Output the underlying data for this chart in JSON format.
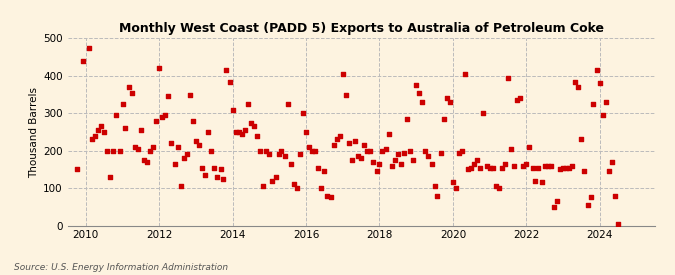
{
  "title": "Monthly West Coast (PADD 5) Exports to Australia of Petroleum Coke",
  "ylabel": "Thousand Barrels",
  "source": "Source: U.S. Energy Information Administration",
  "background_color": "#fdf3e0",
  "marker_color": "#cc0000",
  "xlim": [
    2009.5,
    2025.5
  ],
  "ylim": [
    0,
    500
  ],
  "yticks": [
    0,
    100,
    200,
    300,
    400,
    500
  ],
  "xticks": [
    2010,
    2012,
    2014,
    2016,
    2018,
    2020,
    2022,
    2024
  ],
  "data": [
    [
      2009.75,
      150
    ],
    [
      2009.92,
      440
    ],
    [
      2010.08,
      475
    ],
    [
      2010.17,
      230
    ],
    [
      2010.25,
      240
    ],
    [
      2010.33,
      255
    ],
    [
      2010.42,
      265
    ],
    [
      2010.5,
      250
    ],
    [
      2010.58,
      200
    ],
    [
      2010.67,
      130
    ],
    [
      2010.75,
      200
    ],
    [
      2010.83,
      295
    ],
    [
      2010.92,
      200
    ],
    [
      2011.0,
      325
    ],
    [
      2011.08,
      260
    ],
    [
      2011.17,
      370
    ],
    [
      2011.25,
      355
    ],
    [
      2011.33,
      210
    ],
    [
      2011.42,
      205
    ],
    [
      2011.5,
      255
    ],
    [
      2011.58,
      175
    ],
    [
      2011.67,
      170
    ],
    [
      2011.75,
      200
    ],
    [
      2011.83,
      210
    ],
    [
      2011.92,
      280
    ],
    [
      2012.0,
      420
    ],
    [
      2012.08,
      290
    ],
    [
      2012.17,
      295
    ],
    [
      2012.25,
      345
    ],
    [
      2012.33,
      220
    ],
    [
      2012.42,
      165
    ],
    [
      2012.5,
      210
    ],
    [
      2012.58,
      105
    ],
    [
      2012.67,
      180
    ],
    [
      2012.75,
      190
    ],
    [
      2012.83,
      350
    ],
    [
      2012.92,
      280
    ],
    [
      2013.0,
      225
    ],
    [
      2013.08,
      215
    ],
    [
      2013.17,
      155
    ],
    [
      2013.25,
      135
    ],
    [
      2013.33,
      250
    ],
    [
      2013.42,
      200
    ],
    [
      2013.5,
      155
    ],
    [
      2013.58,
      130
    ],
    [
      2013.67,
      150
    ],
    [
      2013.75,
      125
    ],
    [
      2013.83,
      415
    ],
    [
      2013.92,
      385
    ],
    [
      2014.0,
      310
    ],
    [
      2014.08,
      250
    ],
    [
      2014.17,
      250
    ],
    [
      2014.25,
      245
    ],
    [
      2014.33,
      255
    ],
    [
      2014.42,
      325
    ],
    [
      2014.5,
      275
    ],
    [
      2014.58,
      265
    ],
    [
      2014.67,
      240
    ],
    [
      2014.75,
      200
    ],
    [
      2014.83,
      105
    ],
    [
      2014.92,
      200
    ],
    [
      2015.0,
      190
    ],
    [
      2015.08,
      120
    ],
    [
      2015.17,
      130
    ],
    [
      2015.25,
      190
    ],
    [
      2015.33,
      200
    ],
    [
      2015.42,
      185
    ],
    [
      2015.5,
      325
    ],
    [
      2015.58,
      165
    ],
    [
      2015.67,
      110
    ],
    [
      2015.75,
      100
    ],
    [
      2015.83,
      190
    ],
    [
      2015.92,
      300
    ],
    [
      2016.0,
      250
    ],
    [
      2016.08,
      210
    ],
    [
      2016.17,
      200
    ],
    [
      2016.25,
      200
    ],
    [
      2016.33,
      155
    ],
    [
      2016.42,
      100
    ],
    [
      2016.5,
      145
    ],
    [
      2016.58,
      80
    ],
    [
      2016.67,
      75
    ],
    [
      2016.75,
      215
    ],
    [
      2016.83,
      230
    ],
    [
      2016.92,
      240
    ],
    [
      2017.0,
      405
    ],
    [
      2017.08,
      350
    ],
    [
      2017.17,
      220
    ],
    [
      2017.25,
      175
    ],
    [
      2017.33,
      225
    ],
    [
      2017.42,
      185
    ],
    [
      2017.5,
      180
    ],
    [
      2017.58,
      215
    ],
    [
      2017.67,
      200
    ],
    [
      2017.75,
      200
    ],
    [
      2017.83,
      170
    ],
    [
      2017.92,
      145
    ],
    [
      2018.0,
      165
    ],
    [
      2018.08,
      200
    ],
    [
      2018.17,
      205
    ],
    [
      2018.25,
      245
    ],
    [
      2018.33,
      160
    ],
    [
      2018.42,
      175
    ],
    [
      2018.5,
      190
    ],
    [
      2018.58,
      165
    ],
    [
      2018.67,
      195
    ],
    [
      2018.75,
      285
    ],
    [
      2018.83,
      200
    ],
    [
      2018.92,
      175
    ],
    [
      2019.0,
      375
    ],
    [
      2019.08,
      355
    ],
    [
      2019.17,
      330
    ],
    [
      2019.25,
      200
    ],
    [
      2019.33,
      185
    ],
    [
      2019.42,
      165
    ],
    [
      2019.5,
      105
    ],
    [
      2019.58,
      80
    ],
    [
      2019.67,
      195
    ],
    [
      2019.75,
      285
    ],
    [
      2019.83,
      340
    ],
    [
      2019.92,
      330
    ],
    [
      2020.0,
      115
    ],
    [
      2020.08,
      100
    ],
    [
      2020.17,
      195
    ],
    [
      2020.25,
      200
    ],
    [
      2020.33,
      405
    ],
    [
      2020.42,
      150
    ],
    [
      2020.5,
      155
    ],
    [
      2020.58,
      165
    ],
    [
      2020.67,
      175
    ],
    [
      2020.75,
      155
    ],
    [
      2020.83,
      300
    ],
    [
      2020.92,
      160
    ],
    [
      2021.0,
      155
    ],
    [
      2021.08,
      155
    ],
    [
      2021.17,
      105
    ],
    [
      2021.25,
      100
    ],
    [
      2021.33,
      155
    ],
    [
      2021.42,
      165
    ],
    [
      2021.5,
      395
    ],
    [
      2021.58,
      205
    ],
    [
      2021.67,
      160
    ],
    [
      2021.75,
      335
    ],
    [
      2021.83,
      340
    ],
    [
      2021.92,
      160
    ],
    [
      2022.0,
      165
    ],
    [
      2022.08,
      210
    ],
    [
      2022.17,
      155
    ],
    [
      2022.25,
      120
    ],
    [
      2022.33,
      155
    ],
    [
      2022.42,
      115
    ],
    [
      2022.5,
      160
    ],
    [
      2022.58,
      160
    ],
    [
      2022.67,
      160
    ],
    [
      2022.75,
      50
    ],
    [
      2022.83,
      65
    ],
    [
      2022.92,
      150
    ],
    [
      2023.0,
      155
    ],
    [
      2023.08,
      155
    ],
    [
      2023.17,
      155
    ],
    [
      2023.25,
      160
    ],
    [
      2023.33,
      385
    ],
    [
      2023.42,
      370
    ],
    [
      2023.5,
      230
    ],
    [
      2023.58,
      145
    ],
    [
      2023.67,
      55
    ],
    [
      2023.75,
      75
    ],
    [
      2023.83,
      325
    ],
    [
      2023.92,
      415
    ],
    [
      2024.0,
      380
    ],
    [
      2024.08,
      295
    ],
    [
      2024.17,
      330
    ],
    [
      2024.25,
      145
    ],
    [
      2024.33,
      170
    ],
    [
      2024.42,
      80
    ],
    [
      2024.5,
      3
    ]
  ]
}
